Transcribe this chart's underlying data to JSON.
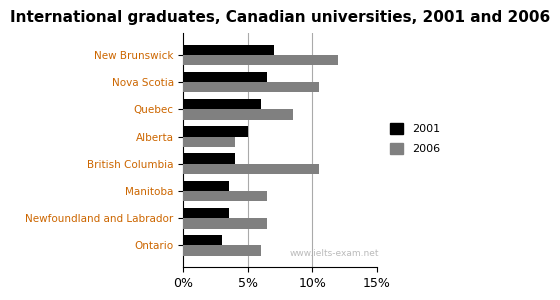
{
  "title": "International graduates, Canadian universities, 2001 and 2006",
  "categories": [
    "New Brunswick",
    "Nova Scotia",
    "Quebec",
    "Alberta",
    "British Columbia",
    "Manitoba",
    "Newfoundland and Labrador",
    "Ontario"
  ],
  "values_2001": [
    7.0,
    6.5,
    6.0,
    5.0,
    4.0,
    3.5,
    3.5,
    3.0
  ],
  "values_2006": [
    12.0,
    10.5,
    8.5,
    4.0,
    10.5,
    6.5,
    6.5,
    6.0
  ],
  "color_2001": "#000000",
  "color_2006": "#808080",
  "xlim": [
    0,
    15
  ],
  "xticks": [
    0,
    5,
    10,
    15
  ],
  "xticklabels": [
    "0%",
    "5%",
    "10%",
    "15%"
  ],
  "grid_color": "#aaaaaa",
  "label_color": "#cc6600",
  "watermark": "www.ielts-exam.net",
  "bar_height": 0.38,
  "title_fontsize": 11,
  "legend_labels": [
    "2001",
    "2006"
  ]
}
